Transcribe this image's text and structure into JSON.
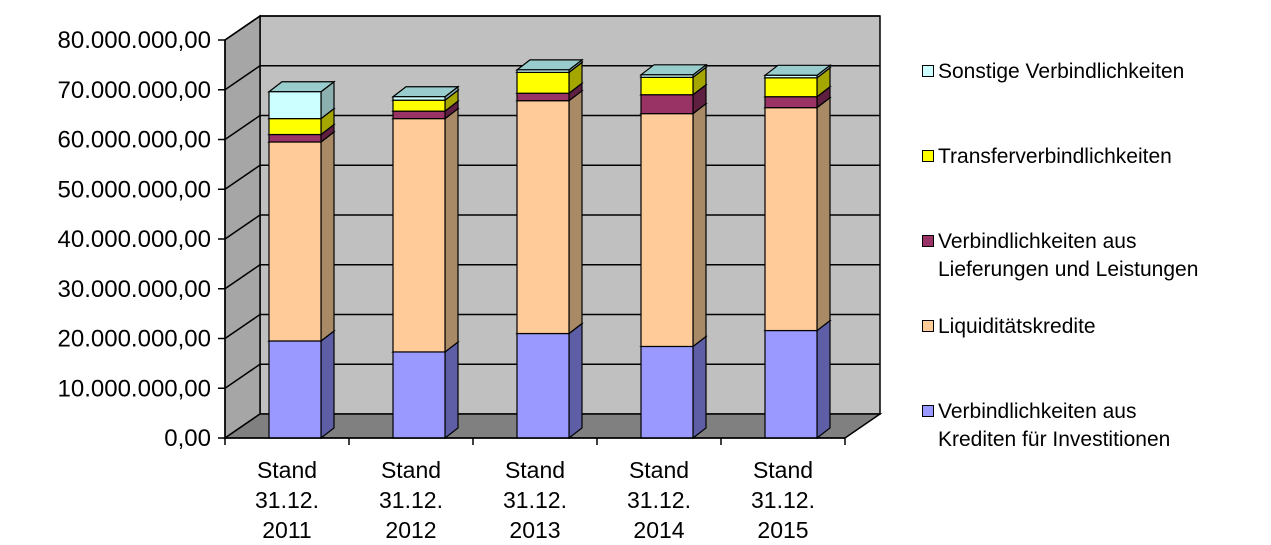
{
  "chart_data": {
    "type": "bar",
    "stacked": true,
    "style": "3d",
    "categories": [
      [
        "Stand",
        "31.12.",
        "2011"
      ],
      [
        "Stand",
        "31.12.",
        "2012"
      ],
      [
        "Stand",
        "31.12.",
        "2013"
      ],
      [
        "Stand",
        "31.12.",
        "2014"
      ],
      [
        "Stand",
        "31.12.",
        "2015"
      ]
    ],
    "y_ticks": [
      "0,00",
      "10.000.000,00",
      "20.000.000,00",
      "30.000.000,00",
      "40.000.000,00",
      "50.000.000,00",
      "60.000.000,00",
      "70.000.000,00",
      "80.000.000,00"
    ],
    "ylim": [
      0,
      80000000
    ],
    "grid": true,
    "legend_position": "right",
    "series": [
      {
        "name": "Verbindlichkeiten aus\nKrediten für Investitionen",
        "color": "#9999FF",
        "side": "#5E5EA6",
        "top": "#C3C3FF",
        "values": [
          19500000,
          17300000,
          21000000,
          18400000,
          21600000
        ]
      },
      {
        "name": "Liquiditätskredite",
        "color": "#FFCC99",
        "side": "#A88A66",
        "top": "#FFE3C7",
        "values": [
          40000000,
          46900000,
          46800000,
          46800000,
          44800000
        ]
      },
      {
        "name": "Verbindlichkeiten aus\nLieferungen und Leistungen",
        "color": "#993366",
        "side": "#5F1F40",
        "top": "#C0708F",
        "values": [
          1500000,
          1500000,
          1500000,
          3800000,
          2200000
        ]
      },
      {
        "name": "Transferverbindlichkeiten",
        "color": "#FFFF00",
        "side": "#A6A600",
        "top": "#FFFF88",
        "values": [
          3200000,
          2200000,
          4200000,
          3500000,
          3800000
        ]
      },
      {
        "name": "Sonstige Verbindlichkeiten",
        "color": "#CCFFFF",
        "side": "#8CAFAF",
        "top": "#99CCCC",
        "values": [
          5400000,
          700000,
          500000,
          500000,
          500000
        ]
      }
    ]
  }
}
